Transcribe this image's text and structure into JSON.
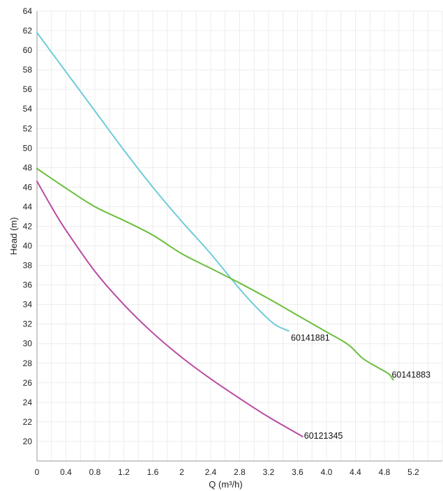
{
  "chart_data": {
    "type": "line",
    "xlabel": "Q (m³/h)",
    "ylabel": "Head (m)",
    "xlim": [
      0,
      5.6
    ],
    "ylim": [
      18,
      64
    ],
    "xticks": [
      "0",
      "0.4",
      "0.8",
      "1.2",
      "1.6",
      "2",
      "2.4",
      "2.8",
      "3.2",
      "3.6",
      "4.0",
      "4.4",
      "4.8",
      "5.2"
    ],
    "yticks": [
      "20",
      "22",
      "24",
      "26",
      "28",
      "30",
      "32",
      "34",
      "36",
      "38",
      "40",
      "42",
      "44",
      "46",
      "48",
      "50",
      "52",
      "54",
      "56",
      "58",
      "60",
      "62",
      "64"
    ],
    "grid": true,
    "series": [
      {
        "name": "60141881",
        "color": "#6fcbd8",
        "x": [
          0,
          0.4,
          0.8,
          1.2,
          1.6,
          2.0,
          2.4,
          2.8,
          3.1,
          3.3,
          3.48
        ],
        "y": [
          61.8,
          57.8,
          53.8,
          49.8,
          46.0,
          42.5,
          39.2,
          35.6,
          33.2,
          31.9,
          31.3
        ]
      },
      {
        "name": "60141883",
        "color": "#6abe3c",
        "x": [
          0,
          0.4,
          0.8,
          1.2,
          1.6,
          2.0,
          2.4,
          2.8,
          3.2,
          3.6,
          4.0,
          4.3,
          4.5,
          4.7,
          4.86,
          4.92
        ],
        "y": [
          47.9,
          45.9,
          44.0,
          42.6,
          41.1,
          39.2,
          37.7,
          36.2,
          34.6,
          32.9,
          31.2,
          29.9,
          28.5,
          27.6,
          26.9,
          26.3
        ]
      },
      {
        "name": "60121345",
        "color": "#b94aa2",
        "x": [
          0,
          0.2,
          0.4,
          0.8,
          1.2,
          1.6,
          2.0,
          2.4,
          2.8,
          3.2,
          3.67
        ],
        "y": [
          46.6,
          44.0,
          41.6,
          37.4,
          34.0,
          31.1,
          28.6,
          26.4,
          24.4,
          22.5,
          20.5
        ]
      }
    ]
  }
}
